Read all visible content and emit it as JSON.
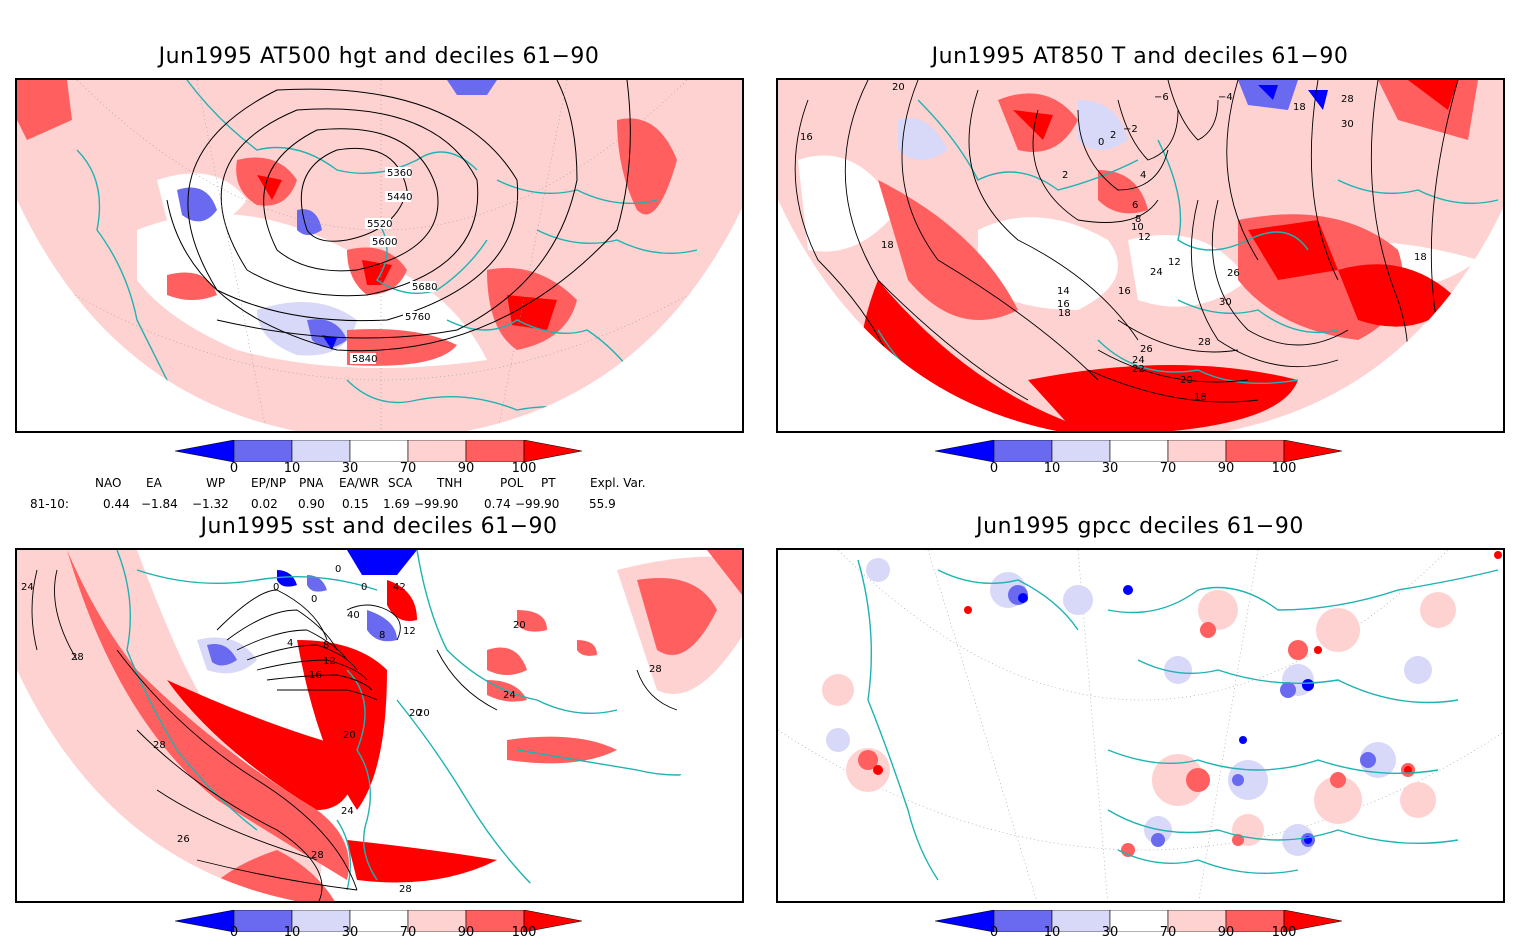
{
  "panels": [
    {
      "title": "Jun1995 AT500 hgt and deciles 61−90",
      "contour_labels": [
        "5360",
        "5440",
        "5520",
        "5600",
        "5680",
        "5760",
        "5840"
      ]
    },
    {
      "title": "Jun1995 AT850 T and deciles 61−90",
      "contour_labels": [
        "20",
        "−6",
        "−4",
        "16",
        "18",
        "28",
        "30",
        "2",
        "0",
        "−2",
        "2",
        "4",
        "6",
        "8",
        "10",
        "12",
        "18",
        "14",
        "16",
        "18",
        "24",
        "26",
        "30",
        "12",
        "28",
        "26",
        "24",
        "22",
        "20",
        "18",
        "16",
        "18"
      ]
    },
    {
      "title": "Jun1995 sst and deciles 61−90",
      "contour_labels": [
        "24",
        "28",
        "0",
        "0",
        "0",
        "0",
        "8",
        "42",
        "40",
        "4",
        "8",
        "12",
        "16",
        "20",
        "20",
        "24",
        "20",
        "28",
        "24",
        "26",
        "28",
        "28",
        "12",
        "20",
        "28"
      ]
    },
    {
      "title": "Jun1995 gpcc deciles 61−90",
      "contour_labels": []
    }
  ],
  "colorbar": {
    "ticks": [
      "0",
      "10",
      "30",
      "70",
      "90",
      "100"
    ],
    "colors": [
      "#0000ff",
      "#6a6af0",
      "#d8d8f8",
      "#ffffff",
      "#ffd2d2",
      "#ff5f5f",
      "#ff0000"
    ]
  },
  "indices": {
    "headers": [
      "NAO",
      "EA",
      "WP",
      "EP/NP",
      "PNA",
      "EA/WR",
      "SCA",
      "TNH",
      "POL",
      "PT",
      "Expl. Var."
    ],
    "row_label": "81-10:",
    "values": [
      "0.44",
      "−1.84",
      "−1.32",
      "0.02",
      "0.90",
      "0.15",
      "1.69",
      "−99.90",
      "0.74",
      "−99.90",
      "55.9"
    ]
  },
  "map_colors": {
    "coast": "#20b2b2",
    "land_bg": "#ffd2d2",
    "contour": "#000000"
  }
}
